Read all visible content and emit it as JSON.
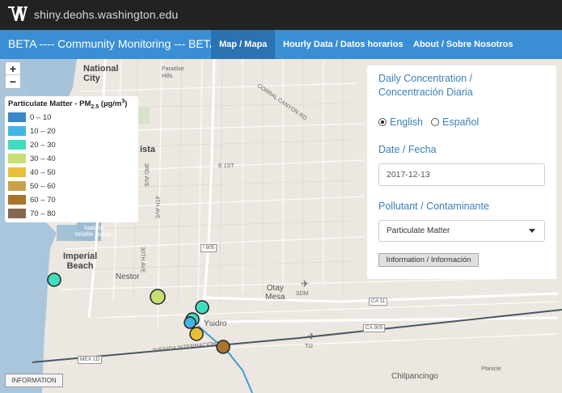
{
  "site": {
    "url": "shiny.deohs.washington.edu",
    "logo_icon": "uw-w-logo-icon"
  },
  "nav": {
    "brand": "BETA ---- Community Monitoring --- BETA",
    "tabs": [
      {
        "label": "Map / Mapa",
        "active": true
      },
      {
        "label": "Hourly Data / Datos horarios",
        "active": false
      },
      {
        "label": "About / Sobre Nosotros",
        "active": false
      }
    ]
  },
  "map": {
    "zoom_in": "+",
    "zoom_out": "−",
    "labels": {
      "national_city": "National\nCity",
      "paradise_hills": "Paradise\nHills",
      "chula_vista": "ista",
      "imperial_beach": "Imperial\nBeach",
      "nestor": "Nestor",
      "otay_mesa": "Otay\nMesa",
      "san_ysidro": "Ysidro",
      "chilpancingo": "Chilpancingo",
      "planicie": "Planicie",
      "wildlife_refuge": "National\nWildlife Refuge",
      "sdm": "SDM",
      "tij": "TIJ",
      "corral_canyon": "CORRAL CANYON RD",
      "i805": "I 805",
      "ca11": "CA 11",
      "ca905": "CA 905",
      "mex1d": "MEX 1D",
      "avenida": "AVENIDA INTERNACIONAL",
      "e1st": "E 1ST",
      "third_ave": "3RD AVE",
      "fourth_ave": "4TH AVE",
      "thirty_ave": "30TH AVE"
    },
    "info_button": "INFORMATION"
  },
  "legend": {
    "title_main": "Particulate Matter - PM",
    "title_sub": "2.5",
    "title_unit_pre": " (µg/m",
    "title_unit_sup": "3",
    "title_unit_post": ")",
    "bins": [
      {
        "label": "0 – 10",
        "color": "#3a86c8"
      },
      {
        "label": "10 – 20",
        "color": "#41b6e6"
      },
      {
        "label": "20 – 30",
        "color": "#40dcbe"
      },
      {
        "label": "30 – 40",
        "color": "#c8df73"
      },
      {
        "label": "40 – 50",
        "color": "#e8bf3a"
      },
      {
        "label": "50 – 60",
        "color": "#c9a148"
      },
      {
        "label": "60 – 70",
        "color": "#a9742c"
      },
      {
        "label": "70 – 80",
        "color": "#86664f"
      }
    ]
  },
  "panel": {
    "heading_line1": "Daily Concentration /",
    "heading_line2": "Concentración Diaria",
    "language_english": "English",
    "language_spanish": "Español",
    "language_selected": "English",
    "date_label": "Date / Fecha",
    "date_value": "2017-12-13",
    "pollutant_label": "Pollutant / Contaminante",
    "pollutant_value": "Particulate Matter",
    "info_button": "Information / Información"
  },
  "monitors": [
    {
      "bin": "20 – 30",
      "color": "#40dcbe"
    },
    {
      "bin": "30 – 40",
      "color": "#c8df73"
    },
    {
      "bin": "20 – 30",
      "color": "#40dcbe"
    },
    {
      "bin": "20 – 30",
      "color": "#40dcbe"
    },
    {
      "bin": "10 – 20",
      "color": "#41b6e6"
    },
    {
      "bin": "40 – 50",
      "color": "#e8bf3a"
    },
    {
      "bin": "60 – 70",
      "color": "#a9742c"
    }
  ]
}
